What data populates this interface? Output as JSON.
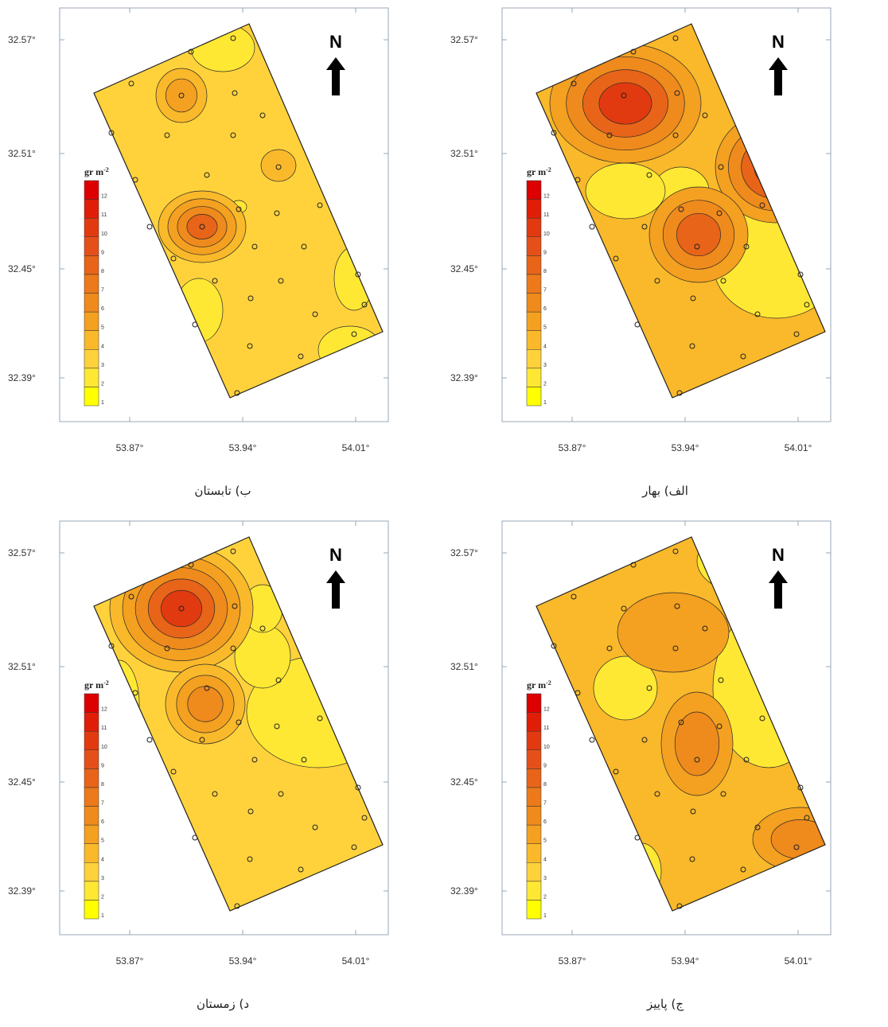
{
  "panels": [
    {
      "id": "summer",
      "caption": "ب) تابستان",
      "y_ticks": [
        "32.57°",
        "32.51°",
        "32.45°",
        "32.39°"
      ],
      "x_ticks": [
        "53.87°",
        "53.94°",
        "54.01°"
      ],
      "unit": "gr m",
      "unit_sup": "-2",
      "north_label": "N",
      "legend_values": [
        "1",
        "2",
        "3",
        "4",
        "5",
        "6",
        "7",
        "8",
        "9",
        "10",
        "11",
        "12"
      ]
    },
    {
      "id": "spring",
      "caption": "الف) بهار",
      "y_ticks": [
        "32.57°",
        "32.51°",
        "32.45°",
        "32.39°"
      ],
      "x_ticks": [
        "53.87°",
        "53.94°",
        "54.01°"
      ],
      "unit": "gr m",
      "unit_sup": "-2",
      "north_label": "N",
      "legend_values": [
        "1",
        "2",
        "3",
        "4",
        "5",
        "6",
        "7",
        "8",
        "9",
        "10",
        "11",
        "12"
      ]
    },
    {
      "id": "winter",
      "caption": "د) زمستان",
      "y_ticks": [
        "32.57°",
        "32.51°",
        "32.45°",
        "32.39°"
      ],
      "x_ticks": [
        "53.87°",
        "53.94°",
        "54.01°"
      ],
      "unit": "gr m",
      "unit_sup": "-2",
      "north_label": "N",
      "legend_values": [
        "1",
        "2",
        "3",
        "4",
        "5",
        "6",
        "7",
        "8",
        "9",
        "10",
        "11",
        "12"
      ]
    },
    {
      "id": "autumn",
      "caption": "ج) پاییز",
      "y_ticks": [
        "32.57°",
        "32.51°",
        "32.45°",
        "32.39°"
      ],
      "x_ticks": [
        "53.87°",
        "53.94°",
        "54.01°"
      ],
      "unit": "gr m",
      "unit_sup": "-2",
      "north_label": "N",
      "legend_values": [
        "1",
        "2",
        "3",
        "4",
        "5",
        "6",
        "7",
        "8",
        "9",
        "10",
        "11",
        "12"
      ]
    }
  ],
  "colors": {
    "level_1": "#ffff00",
    "level_2": "#ffe834",
    "level_3": "#ffd23c",
    "level_4": "#f9b92a",
    "level_5": "#f4a020",
    "level_6": "#ef8a1c",
    "level_8": "#e86418",
    "level_10": "#e23a10",
    "level_12": "#dd0000",
    "contour_line": "#2a2a2a",
    "frame": "#9aa7b4"
  },
  "icons": {
    "north": "north-arrow-icon",
    "sample": "sample-point-icon"
  }
}
